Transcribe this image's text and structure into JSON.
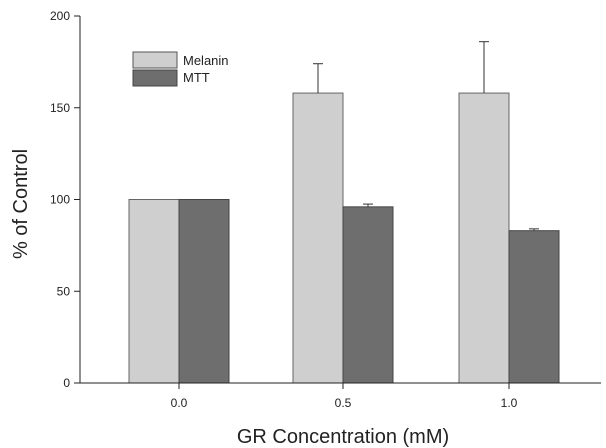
{
  "chart_data": {
    "type": "bar",
    "xlabel": "GR Concentration (mM)",
    "ylabel": "% of Control",
    "categories": [
      "0.0",
      "0.5",
      "1.0"
    ],
    "ylim": [
      0,
      200
    ],
    "yticks": [
      0,
      50,
      100,
      150,
      200
    ],
    "series": [
      {
        "name": "Melanin",
        "values": [
          100,
          158,
          158
        ],
        "errors": [
          0,
          16,
          28
        ],
        "color": "#cfcfcf"
      },
      {
        "name": "MTT",
        "values": [
          100,
          96,
          83
        ],
        "errors": [
          0,
          1.5,
          1
        ],
        "color": "#6e6e6e"
      }
    ],
    "legend_position": "top-left",
    "grid": false
  }
}
